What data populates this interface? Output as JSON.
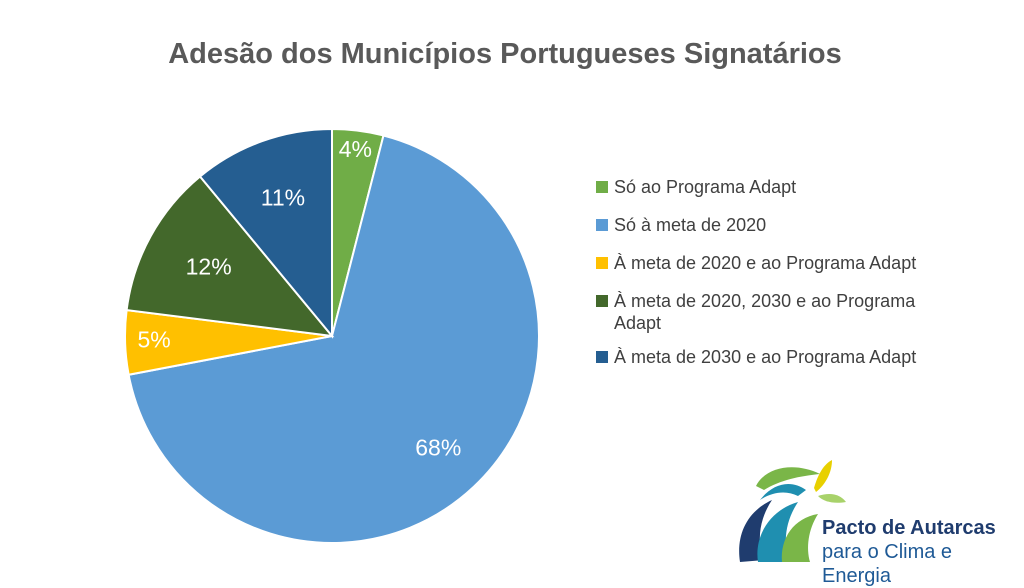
{
  "title": "Adesão dos Municípios Portugueses Signatários",
  "chart_data": {
    "type": "pie",
    "title": "Adesão dos Municípios Portugueses Signatários",
    "start_angle_deg": 0,
    "direction": "clockwise",
    "legend_position": "right",
    "slices": [
      {
        "name": "Só ao Programa Adapt",
        "value": 4,
        "label": "4%",
        "color": "#70ad47"
      },
      {
        "name": "Só à meta de 2020",
        "value": 68,
        "label": "68%",
        "color": "#5b9bd5"
      },
      {
        "name": "À meta de 2020 e ao Programa Adapt",
        "value": 5,
        "label": "5%",
        "color": "#ffc000"
      },
      {
        "name": "À meta de 2020, 2030 e ao Programa Adapt",
        "value": 12,
        "label": "12%",
        "color": "#43682b"
      },
      {
        "name": "À meta de 2030 e ao Programa Adapt",
        "value": 11,
        "label": "11%",
        "color": "#255e91"
      }
    ]
  },
  "logo": {
    "line1": "Pacto de Autarcas",
    "line2": "para o Clima e Energia"
  }
}
